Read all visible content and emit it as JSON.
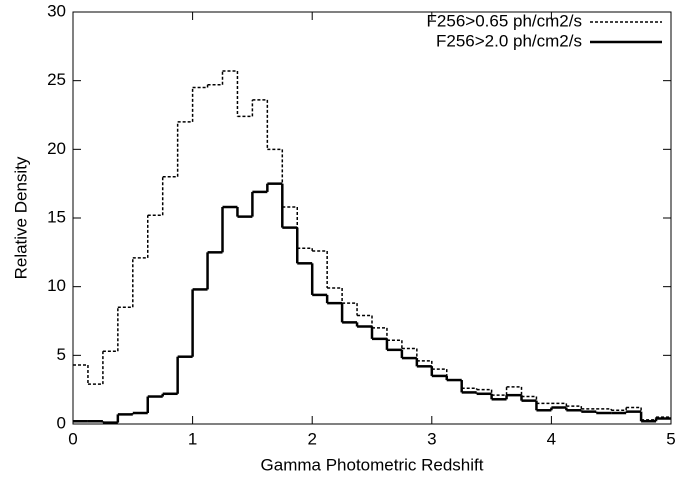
{
  "chart_data": {
    "type": "histogram",
    "xlabel": "Gamma Photometric Redshift",
    "ylabel": "Relative Density",
    "bins": [
      0,
      0.125,
      0.25,
      0.375,
      0.5,
      0.625,
      0.75,
      0.875,
      1,
      1.125,
      1.25,
      1.375,
      1.5,
      1.625,
      1.75,
      1.875,
      2,
      2.125,
      2.25,
      2.375,
      2.5,
      2.625,
      2.75,
      2.875,
      3,
      3.125,
      3.25,
      3.375,
      3.5,
      3.625,
      3.75,
      3.875,
      4,
      4.125,
      4.25,
      4.375,
      4.5,
      4.625,
      4.75,
      4.875,
      5
    ],
    "series": [
      {
        "name": "F256>0.65 ph/cm2/s",
        "color": "#000000",
        "dash": true,
        "values": [
          4.3,
          2.9,
          5.3,
          8.5,
          12.1,
          15.2,
          18.0,
          22.0,
          24.5,
          24.7,
          25.7,
          22.4,
          23.6,
          20.0,
          15.8,
          12.8,
          12.6,
          9.9,
          8.8,
          7.9,
          7.0,
          6.1,
          5.5,
          4.6,
          4.0,
          3.2,
          2.6,
          2.5,
          2.1,
          2.7,
          2.0,
          1.5,
          1.5,
          1.3,
          1.1,
          1.1,
          1.0,
          1.2,
          0.3,
          0.5
        ]
      },
      {
        "name": "F256>2.0 ph/cm2/s",
        "color": "#000000",
        "dash": false,
        "values": [
          0.2,
          0.2,
          0.1,
          0.7,
          0.8,
          2.0,
          2.2,
          4.9,
          9.8,
          12.5,
          15.8,
          15.1,
          16.9,
          17.5,
          14.3,
          11.7,
          9.4,
          8.8,
          7.4,
          7.1,
          6.2,
          5.4,
          4.8,
          4.2,
          3.5,
          3.2,
          2.3,
          2.2,
          1.8,
          2.1,
          1.7,
          1.0,
          1.2,
          1.0,
          0.9,
          0.8,
          0.8,
          0.9,
          0.2,
          0.4
        ]
      }
    ],
    "xlim": [
      0,
      5
    ],
    "xticks": [
      0,
      1,
      2,
      3,
      4,
      5
    ],
    "ylim": [
      0,
      30
    ],
    "yticks": [
      0,
      5,
      10,
      15,
      20,
      25,
      30
    ],
    "legend": "upper right"
  }
}
